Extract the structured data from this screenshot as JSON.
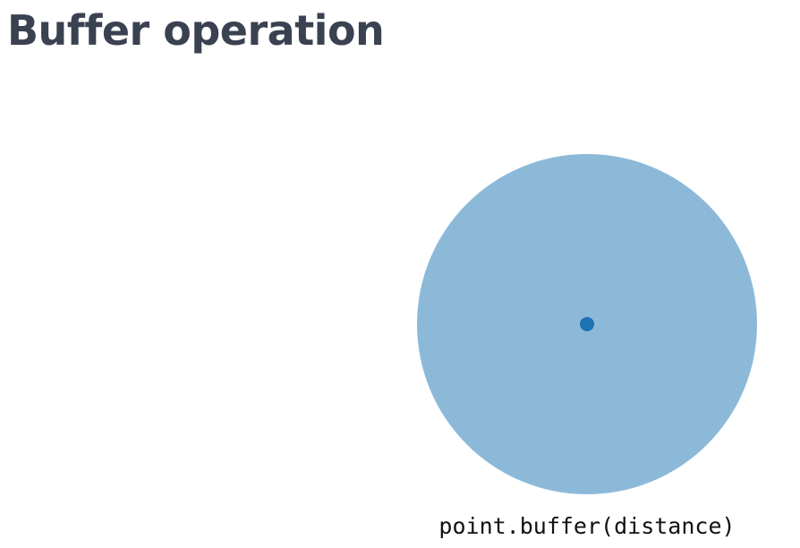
{
  "slide": {
    "title": "Buffer operation"
  },
  "diagram": {
    "caption": "point.buffer(distance)",
    "colors": {
      "buffer_fill": "#8db9d9",
      "point_fill": "#1f72b3"
    }
  }
}
